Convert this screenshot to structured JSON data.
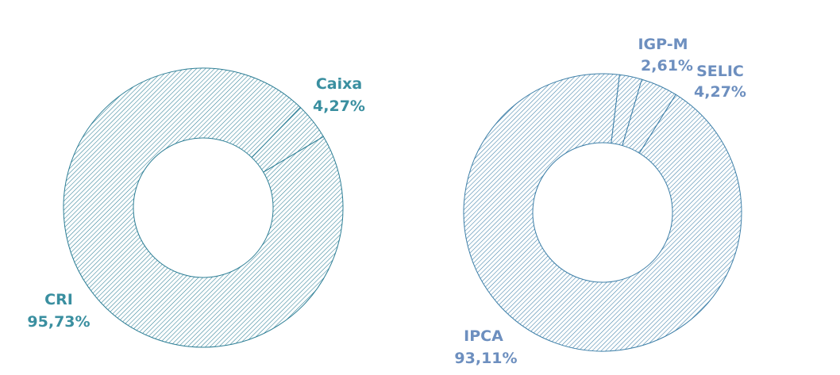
{
  "colors": {
    "left_chart": "#2e7f96",
    "left_label": "#3a8fa0",
    "right_chart": "#3d7fa8",
    "right_label": "#6d8fbf",
    "background": "#ffffff"
  },
  "fill_pattern": "diagonal-hatch",
  "chart_data": [
    {
      "type": "pie",
      "donut": true,
      "title": "",
      "slices": [
        {
          "label": "CRI",
          "value": 95.73,
          "value_text": "95,73%"
        },
        {
          "label": "Caixa",
          "value": 4.27,
          "value_text": "4,27%"
        }
      ]
    },
    {
      "type": "pie",
      "donut": true,
      "title": "",
      "slices": [
        {
          "label": "IPCA",
          "value": 93.11,
          "value_text": "93,11%"
        },
        {
          "label": "IGP-M",
          "value": 2.61,
          "value_text": "2,61%"
        },
        {
          "label": "SELIC",
          "value": 4.27,
          "value_text": "4,27%"
        }
      ]
    }
  ]
}
